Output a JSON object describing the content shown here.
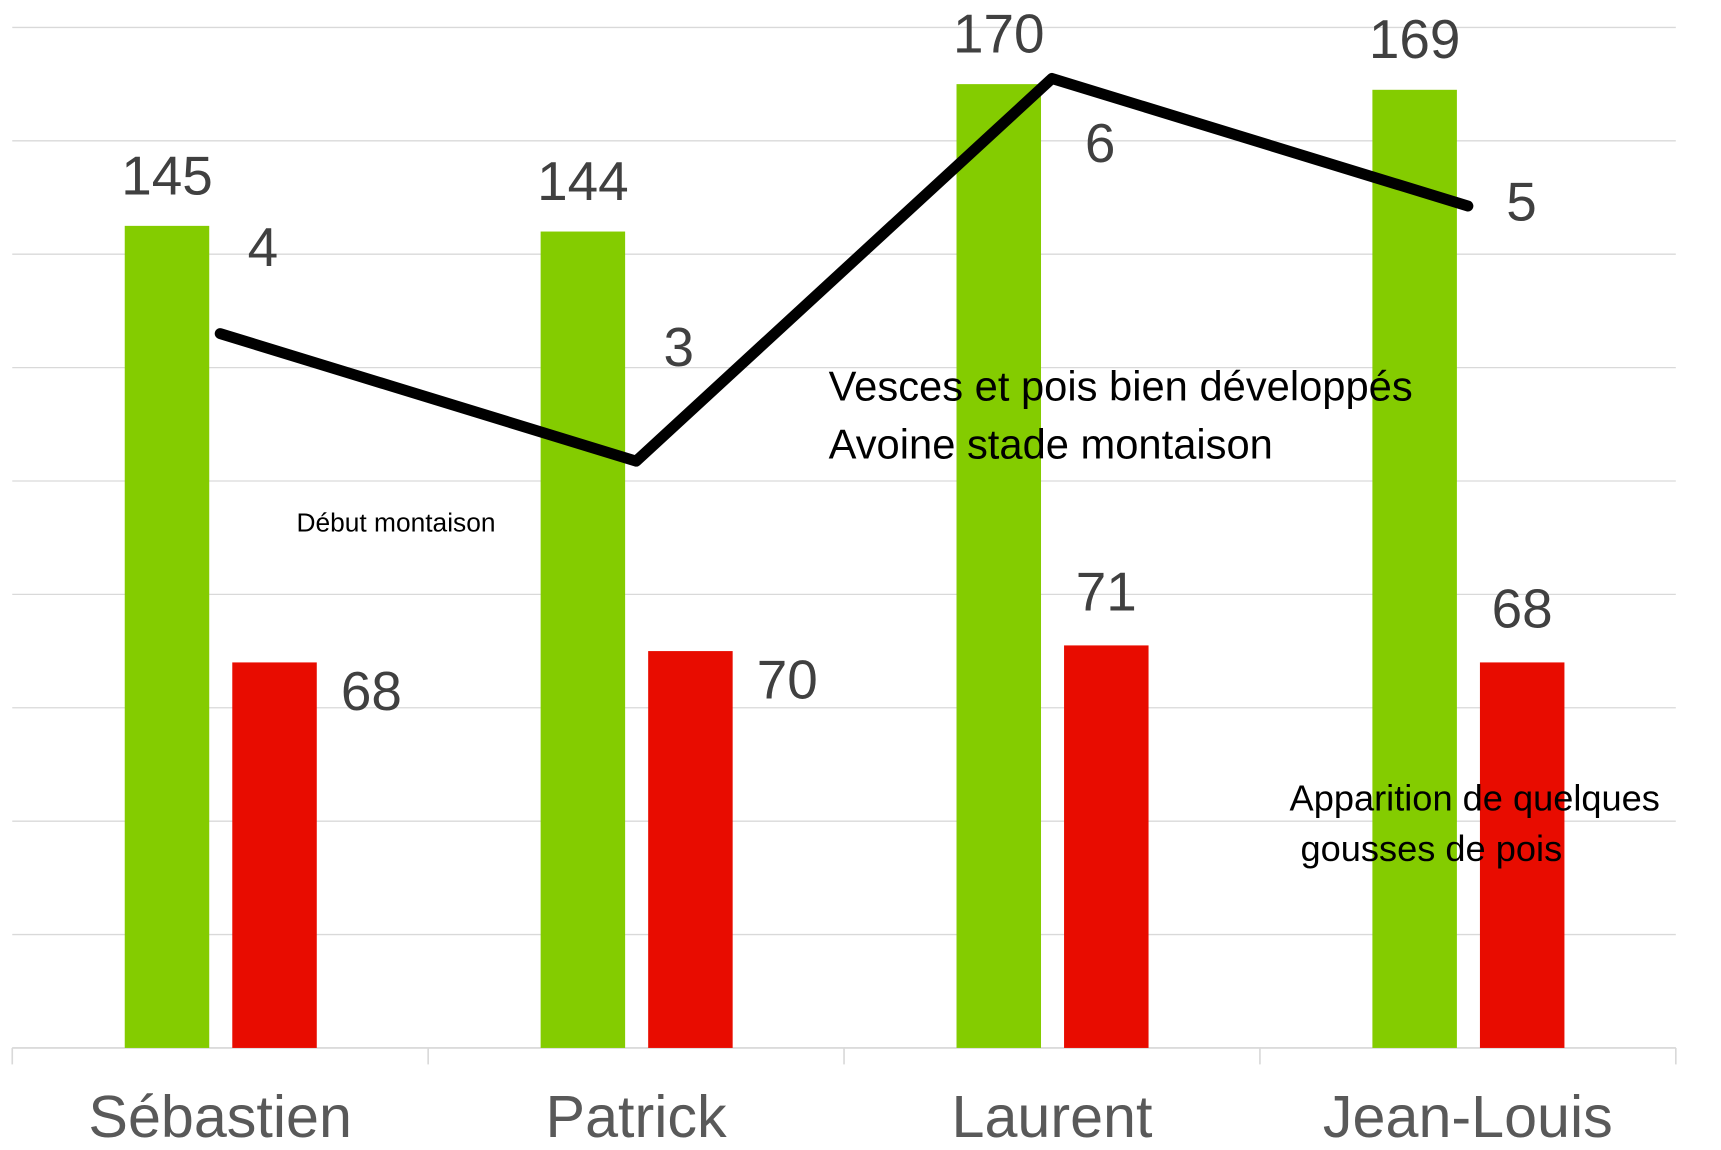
{
  "chart_data": {
    "type": "bar",
    "categories": [
      "Sébastien",
      "Patrick",
      "Laurent",
      "Jean-Louis"
    ],
    "series": [
      {
        "color": "#84cc00",
        "values": [
          145,
          144,
          170,
          169
        ]
      },
      {
        "color": "#e80c00",
        "values": [
          68,
          70,
          71,
          68
        ]
      },
      {
        "type": "line",
        "axis": "y2",
        "color": "#000000",
        "values": [
          4,
          3,
          6,
          5
        ]
      }
    ],
    "ylim": [
      0,
      180
    ],
    "yticks": [
      0,
      20,
      40,
      60,
      80,
      100,
      120,
      140,
      160,
      180
    ],
    "y2lim": [
      -1.6,
      6.4
    ],
    "grid": true,
    "annotations": [
      "Début montaison",
      "Vesces et pois bien développés",
      "Avoine stade montaison",
      "Apparition de quelques",
      "gousses de pois"
    ]
  }
}
